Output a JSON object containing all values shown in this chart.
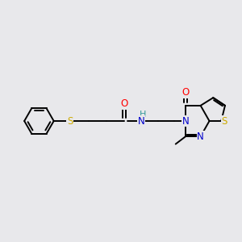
{
  "background_color": "#e8e8eb",
  "fig_size": [
    3.0,
    3.0
  ],
  "dpi": 100,
  "bond_color": "#000000",
  "bond_width": 1.4,
  "font_size": 8.5,
  "label_colors": {
    "S": "#ccaa00",
    "O": "#ff0000",
    "N": "#0000cc",
    "H": "#339999",
    "C": "#000000"
  },
  "xlim": [
    0,
    10
  ],
  "ylim": [
    2,
    8
  ]
}
